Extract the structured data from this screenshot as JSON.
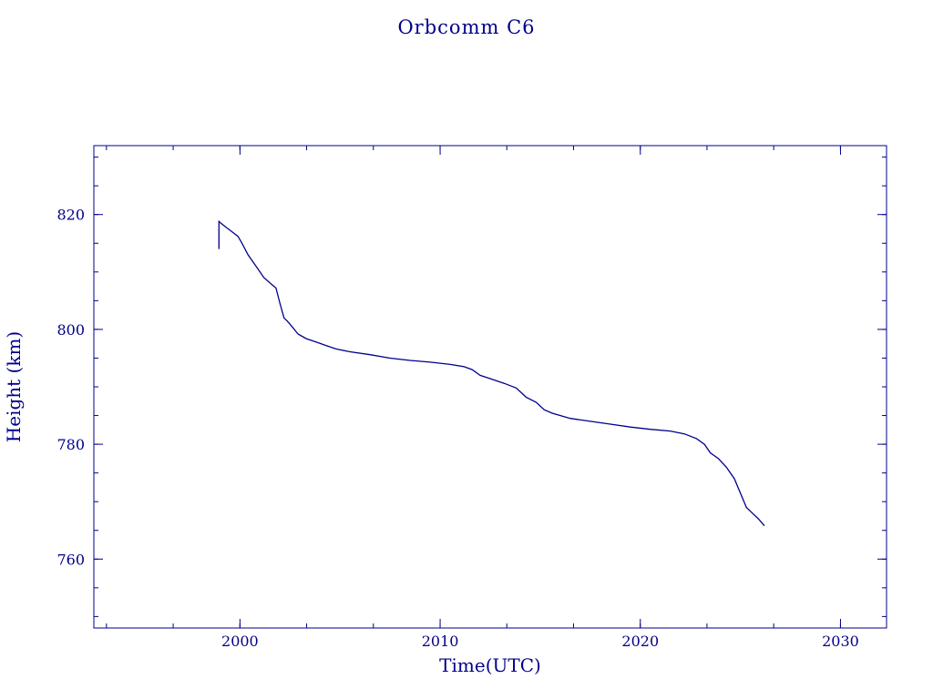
{
  "chart_data": {
    "type": "line",
    "title": "Orbcomm C6",
    "xlabel": "Time(UTC)",
    "ylabel": "Height (km)",
    "xlim": [
      1992.7,
      2032.3
    ],
    "ylim": [
      748,
      832
    ],
    "xticks": [
      2000,
      2010,
      2020,
      2030
    ],
    "yticks": [
      760,
      780,
      800,
      820
    ],
    "grid": false,
    "colors": {
      "line": "#00008b",
      "frame": "#00008b",
      "text": "#00008b"
    },
    "series": [
      {
        "x": [
          1998.95,
          1998.95,
          1999.05,
          1999.3,
          1999.6,
          1999.9,
          2000.1,
          2000.4,
          2000.8,
          2001.2,
          2001.6,
          2001.8,
          2002.0,
          2002.2,
          2002.35,
          2002.6,
          2002.9,
          2003.3,
          2003.8,
          2004.2,
          2004.8,
          2005.5,
          2006.5,
          2007.5,
          2008.5,
          2009.5,
          2010.5,
          2011.2,
          2011.6,
          2012.0,
          2012.6,
          2013.2,
          2013.8,
          2014.3,
          2014.8,
          2015.2,
          2015.6,
          2016.5,
          2017.5,
          2018.5,
          2019.5,
          2020.5,
          2021.5,
          2022.2,
          2022.8,
          2023.2,
          2023.5,
          2023.9,
          2024.3,
          2024.7,
          2025.0,
          2025.3,
          2025.6,
          2025.9,
          2026.2
        ],
        "y": [
          814,
          818.8,
          818.5,
          817.8,
          817.0,
          816.2,
          815.0,
          813.0,
          811.0,
          809.0,
          807.8,
          807.2,
          804.5,
          802.0,
          801.5,
          800.5,
          799.2,
          798.4,
          797.8,
          797.3,
          796.6,
          796.1,
          795.6,
          795.0,
          794.6,
          794.3,
          793.9,
          793.5,
          793.0,
          792.0,
          791.3,
          790.6,
          789.8,
          788.2,
          787.3,
          786.0,
          785.4,
          784.5,
          784.0,
          783.5,
          783.0,
          782.6,
          782.3,
          781.8,
          781.0,
          780.0,
          778.5,
          777.5,
          776.0,
          774.0,
          771.5,
          769.0,
          768.0,
          767.0,
          765.8
        ]
      }
    ]
  }
}
